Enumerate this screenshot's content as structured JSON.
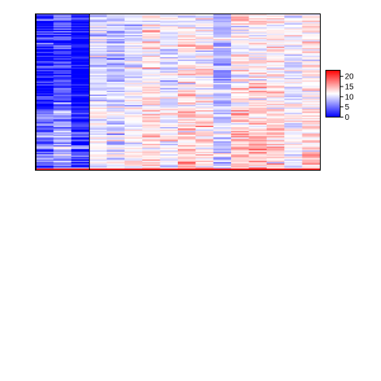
{
  "chart_data": {
    "type": "heatmap",
    "title": "",
    "xlabel": "",
    "ylabel": "",
    "n_rows": 120,
    "n_columns": 16,
    "column_means": [
      4,
      6,
      2,
      10.5,
      9.5,
      11,
      13,
      11,
      13.5,
      12.5,
      9,
      13,
      13.5,
      13,
      11,
      13
    ],
    "column_spread": [
      3,
      3,
      3,
      2.5,
      3,
      2.5,
      2.5,
      2.5,
      3,
      3,
      3,
      3,
      3,
      2.5,
      2.5,
      2.5
    ],
    "highlight_box": {
      "first_column": 1,
      "last_column": 3,
      "label": ""
    },
    "bottom_row_highlight": "red",
    "colorbar": {
      "min": 0,
      "max": 23,
      "mid": 11.5,
      "ticks": [
        0,
        5,
        10,
        15,
        20
      ],
      "tick_labels": [
        "0",
        "5",
        "10",
        "15",
        "20"
      ],
      "low_color": "#0000ff",
      "mid_color": "#ffffff",
      "high_color": "#ff0000"
    },
    "random_seed": 7
  }
}
